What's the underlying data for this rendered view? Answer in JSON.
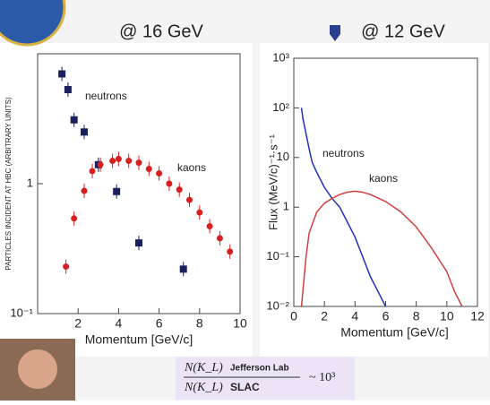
{
  "chart_data": [
    {
      "type": "scatter",
      "title": "@ 16 GeV",
      "xlabel": "Momentum [GeV/c]",
      "ylabel": "PARTICLES INCIDENT AT HBC (ARBITRARY UNITS)",
      "xlim": [
        0,
        10
      ],
      "xticks": [
        2,
        4,
        6,
        8,
        10
      ],
      "ylim": [
        0.1,
        10
      ],
      "log_y": true,
      "yticks": [
        {
          "value": 0.1,
          "label": "10⁻¹"
        },
        {
          "value": 1,
          "label": "1"
        }
      ],
      "series": [
        {
          "name": "neutrons",
          "color": "#1a1f5e",
          "marker": "square",
          "x": [
            1.2,
            1.5,
            1.8,
            2.3,
            3.0,
            3.9,
            5.0,
            7.2
          ],
          "values": [
            7.0,
            5.3,
            3.1,
            2.5,
            1.4,
            0.87,
            0.35,
            0.22
          ]
        },
        {
          "name": "kaons",
          "color": "#d62020",
          "marker": "circle",
          "x": [
            1.4,
            1.8,
            2.3,
            2.7,
            3.1,
            3.7,
            4.0,
            4.5,
            5.0,
            5.5,
            6.0,
            6.5,
            7.0,
            7.5,
            8.0,
            8.5,
            9.0,
            9.5
          ],
          "values": [
            0.23,
            0.54,
            0.88,
            1.25,
            1.4,
            1.5,
            1.55,
            1.5,
            1.45,
            1.3,
            1.2,
            1.0,
            0.9,
            0.75,
            0.6,
            0.47,
            0.38,
            0.3
          ]
        }
      ]
    },
    {
      "type": "line",
      "title": "@ 12 GeV",
      "xlabel": "Momentum [GeV/c]",
      "ylabel": "Flux (MeV/c)⁻¹·s⁻¹",
      "xlim": [
        0,
        12
      ],
      "xticks": [
        0,
        2,
        4,
        6,
        8,
        10,
        12
      ],
      "ylim": [
        0.01,
        1000
      ],
      "log_y": true,
      "yticks": [
        {
          "value": 0.01,
          "label": "10⁻²"
        },
        {
          "value": 0.1,
          "label": "10⁻¹"
        },
        1,
        {
          "value": 10,
          "label": "10"
        },
        {
          "value": 100,
          "label": "10²"
        },
        {
          "value": 1000,
          "label": "10³"
        }
      ],
      "series": [
        {
          "name": "neutrons",
          "color": "#2030c0",
          "x": [
            0.5,
            0.6,
            0.8,
            1,
            1.2,
            1.5,
            2,
            2.5,
            3,
            3.5,
            4,
            4.5,
            5,
            5.5,
            6
          ],
          "values": [
            100,
            60,
            30,
            15,
            8,
            5,
            2.5,
            1.5,
            1.0,
            0.5,
            0.25,
            0.1,
            0.04,
            0.02,
            0.01
          ]
        },
        {
          "name": "kaons",
          "color": "#d04040",
          "x": [
            0.5,
            0.8,
            1,
            1.5,
            2,
            2.5,
            3,
            3.5,
            4,
            4.5,
            5,
            6,
            7,
            8,
            9,
            10,
            10.5,
            11
          ],
          "values": [
            0.01,
            0.1,
            0.3,
            0.8,
            1.2,
            1.5,
            1.8,
            2.0,
            2.1,
            2.0,
            1.8,
            1.3,
            0.8,
            0.4,
            0.15,
            0.05,
            0.02,
            0.01
          ]
        }
      ]
    }
  ],
  "formula": {
    "numerator": "N(K_L)",
    "numerator_lab": "Jefferson Lab",
    "denominator": "N(K_L)",
    "denominator_lab": "SLAC",
    "ratio": "~ 10³"
  }
}
